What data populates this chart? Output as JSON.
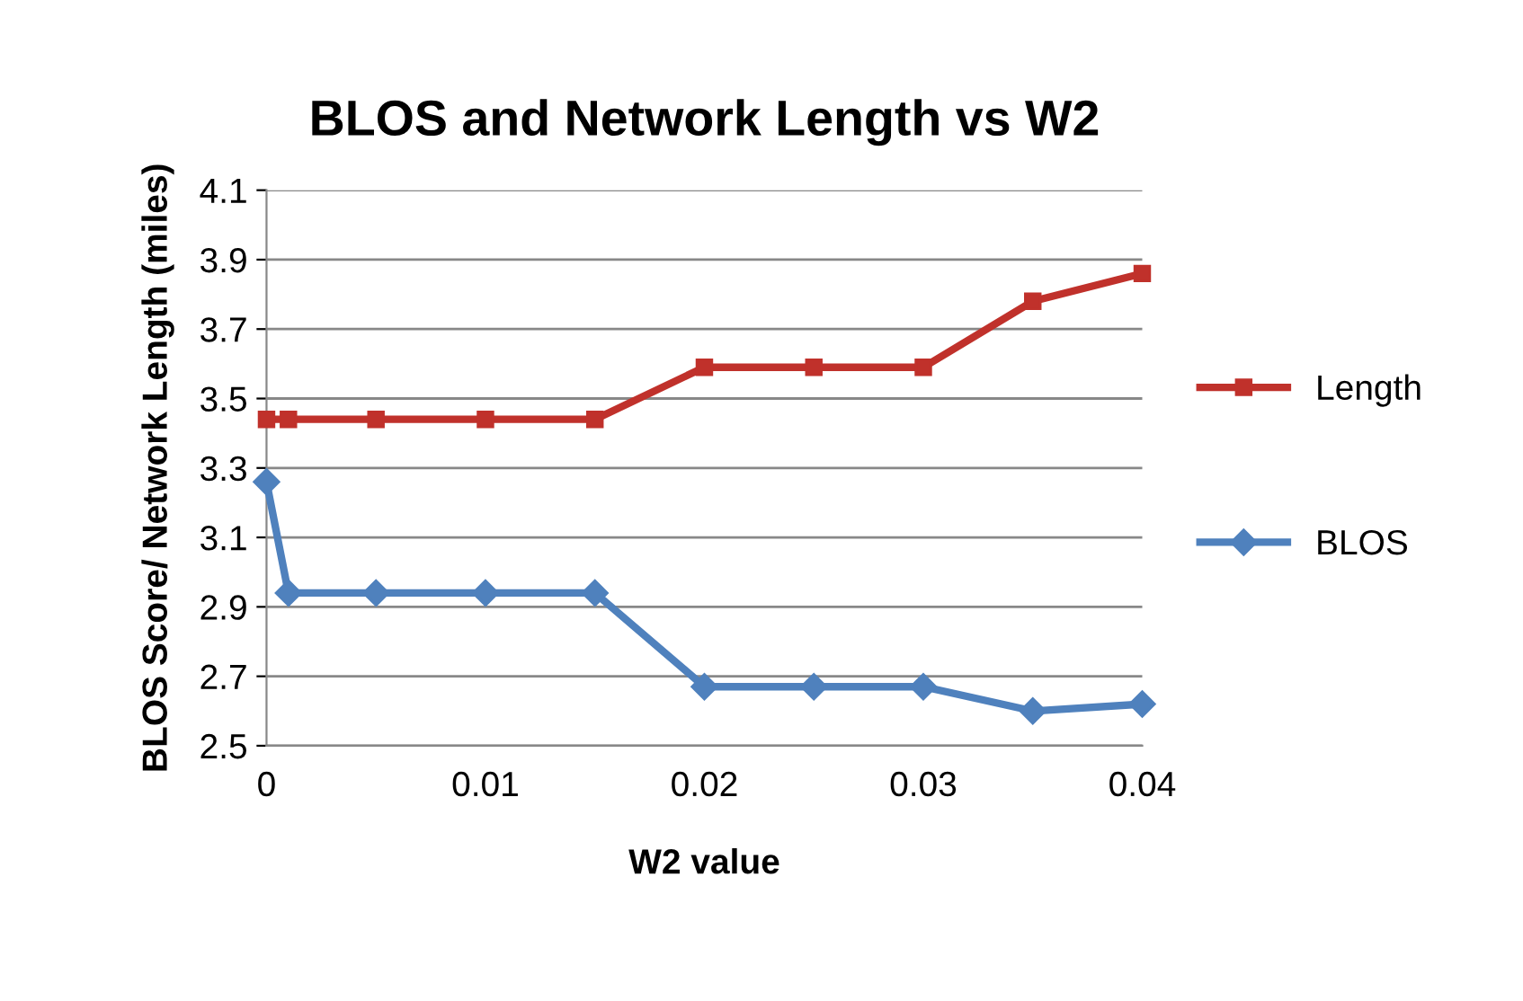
{
  "chart_data": {
    "type": "line",
    "title": "BLOS and Network Length vs W2",
    "xlabel": "W2 value",
    "ylabel": "BLOS Score/ Network Length (miles)",
    "x": [
      0,
      0.001,
      0.005,
      0.01,
      0.015,
      0.02,
      0.025,
      0.03,
      0.035,
      0.04
    ],
    "series": [
      {
        "name": "Length",
        "color": "#c0312b",
        "marker": "square",
        "values": [
          3.44,
          3.44,
          3.44,
          3.44,
          3.44,
          3.59,
          3.59,
          3.59,
          3.78,
          3.86
        ]
      },
      {
        "name": "BLOS",
        "color": "#4f81bd",
        "marker": "diamond",
        "values": [
          3.26,
          2.94,
          2.94,
          2.94,
          2.94,
          2.67,
          2.67,
          2.67,
          2.6,
          2.62
        ]
      }
    ],
    "xlim": [
      0,
      0.04
    ],
    "xticks": [
      0,
      0.01,
      0.02,
      0.03,
      0.04
    ],
    "ylim": [
      2.5,
      4.1
    ],
    "yticks": [
      2.5,
      2.7,
      2.9,
      3.1,
      3.3,
      3.5,
      3.7,
      3.9,
      4.1
    ],
    "grid": "y",
    "legend": "right",
    "line_style": "solid"
  }
}
